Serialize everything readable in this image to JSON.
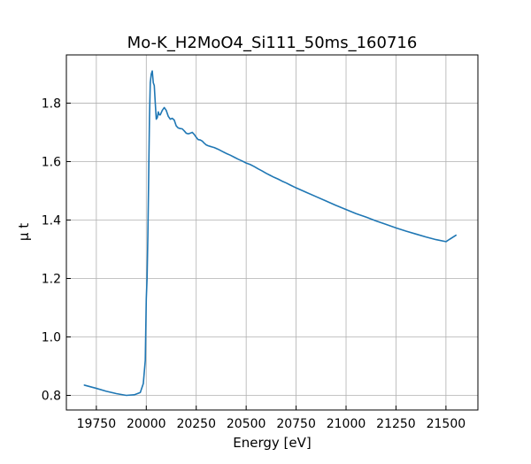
{
  "chart_data": {
    "type": "line",
    "title": "Mo-K_H2MoO4_Si111_50ms_160716",
    "xlabel": "Energy [eV]",
    "ylabel": "μ t",
    "xlim": [
      19600,
      21660
    ],
    "ylim": [
      0.75,
      1.965
    ],
    "xticks": [
      19750,
      20000,
      20250,
      20500,
      20750,
      21000,
      21250,
      21500
    ],
    "yticks": [
      0.8,
      1.0,
      1.2,
      1.4,
      1.6,
      1.8
    ],
    "xtick_labels": [
      "19750",
      "20000",
      "20250",
      "20500",
      "20750",
      "21000",
      "21250",
      "21500"
    ],
    "ytick_labels": [
      "0.8",
      "1.0",
      "1.2",
      "1.4",
      "1.6",
      "1.8"
    ],
    "grid": true,
    "series": [
      {
        "color": "#1f77b4",
        "x": [
          19690,
          19750,
          19800,
          19850,
          19900,
          19940,
          19970,
          19985,
          19995,
          20000,
          20004,
          20008,
          20012,
          20016,
          20020,
          20025,
          20030,
          20035,
          20040,
          20045,
          20050,
          20055,
          20060,
          20065,
          20070,
          20080,
          20090,
          20100,
          20110,
          20120,
          20130,
          20140,
          20150,
          20160,
          20170,
          20180,
          20190,
          20200,
          20210,
          20220,
          20230,
          20240,
          20250,
          20260,
          20270,
          20280,
          20290,
          20300,
          20310,
          20320,
          20330,
          20340,
          20350,
          20360,
          20380,
          20400,
          20420,
          20440,
          20460,
          20480,
          20500,
          20520,
          20540,
          20560,
          20580,
          20600,
          20620,
          20640,
          20660,
          20680,
          20700,
          20720,
          20750,
          20800,
          20850,
          20900,
          20950,
          21000,
          21050,
          21100,
          21150,
          21200,
          21250,
          21300,
          21350,
          21400,
          21450,
          21500,
          21550
        ],
        "y": [
          0.835,
          0.824,
          0.814,
          0.806,
          0.8,
          0.802,
          0.81,
          0.84,
          0.92,
          1.13,
          1.2,
          1.35,
          1.55,
          1.75,
          1.87,
          1.9,
          1.91,
          1.87,
          1.86,
          1.8,
          1.745,
          1.75,
          1.77,
          1.76,
          1.76,
          1.775,
          1.785,
          1.775,
          1.755,
          1.745,
          1.748,
          1.742,
          1.722,
          1.715,
          1.713,
          1.712,
          1.705,
          1.697,
          1.695,
          1.697,
          1.7,
          1.693,
          1.683,
          1.675,
          1.674,
          1.67,
          1.663,
          1.657,
          1.654,
          1.652,
          1.65,
          1.648,
          1.645,
          1.642,
          1.635,
          1.628,
          1.622,
          1.615,
          1.608,
          1.602,
          1.595,
          1.59,
          1.583,
          1.575,
          1.568,
          1.56,
          1.553,
          1.546,
          1.54,
          1.533,
          1.527,
          1.52,
          1.51,
          1.495,
          1.48,
          1.465,
          1.45,
          1.436,
          1.422,
          1.41,
          1.397,
          1.385,
          1.373,
          1.362,
          1.352,
          1.342,
          1.333,
          1.326,
          1.348
        ]
      }
    ]
  }
}
